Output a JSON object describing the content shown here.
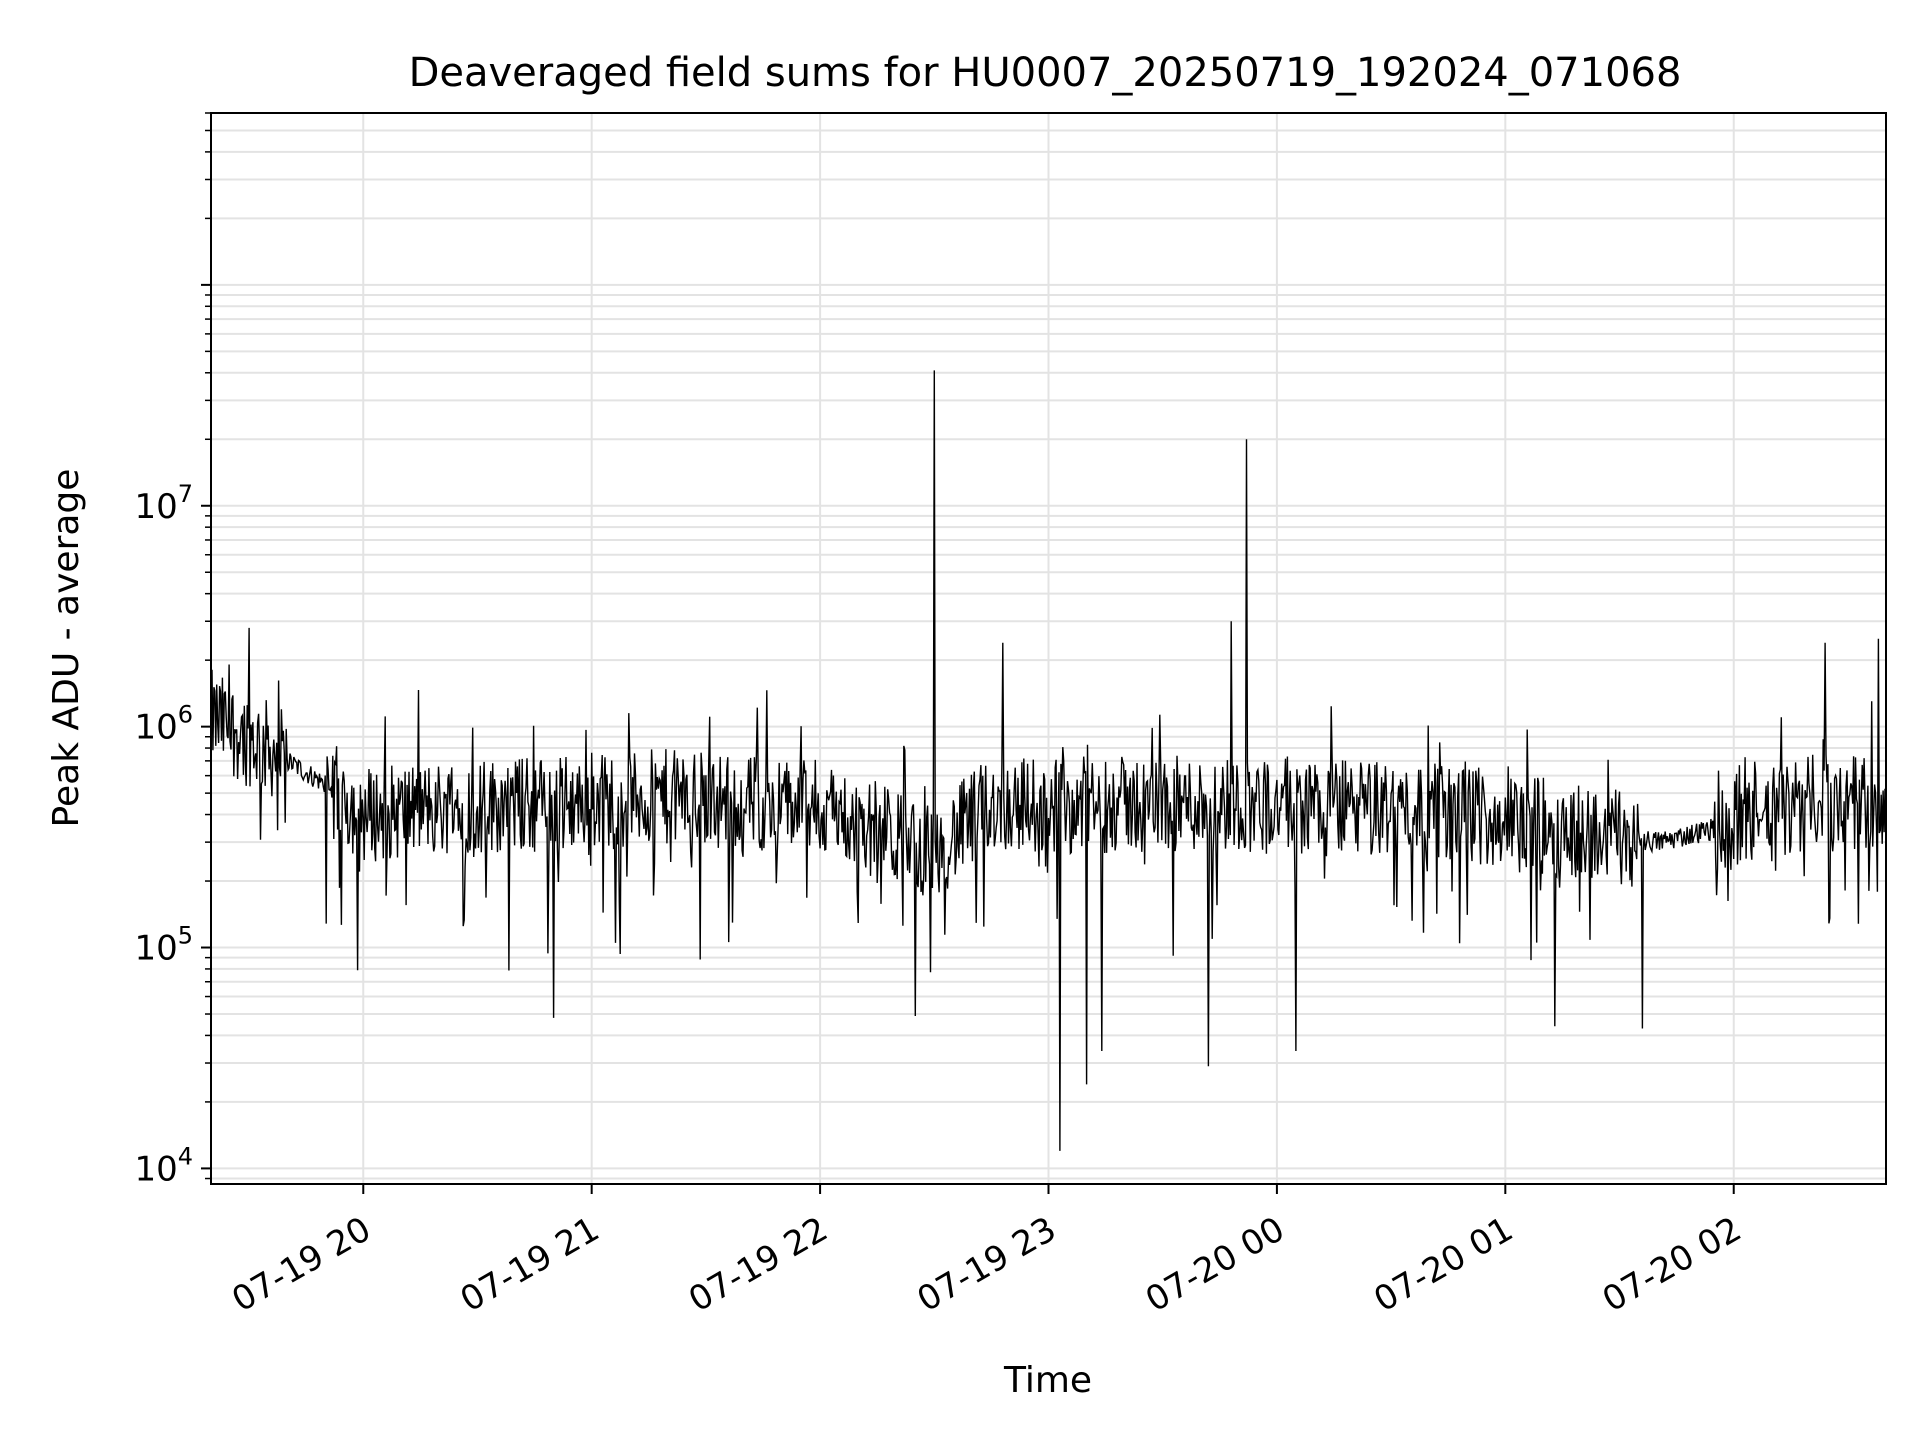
{
  "chart_data": {
    "type": "line",
    "title": "Deaveraged field sums for HU0007_20250719_192024_071068",
    "xlabel": "Time",
    "ylabel": "Peak ADU - average",
    "yscale": "log",
    "xlim": [
      "2025-07-19 19:20",
      "2025-07-20 02:40"
    ],
    "ylim": [
      8500,
      600000000
    ],
    "grid": true,
    "x_ticks": [
      "07-19 20",
      "07-19 21",
      "07-19 22",
      "07-19 23",
      "07-20 00",
      "07-20 01",
      "07-20 02"
    ],
    "y_ticks": [
      {
        "base": "10",
        "exp": "4"
      },
      {
        "base": "10",
        "exp": "5"
      },
      {
        "base": "10",
        "exp": "6"
      },
      {
        "base": "10",
        "exp": "7"
      }
    ],
    "series": [
      {
        "line_color": "#000000",
        "sample_interval_minutes": 0.25,
        "baseline_minutes": [
          0,
          15,
          20,
          30,
          40,
          60,
          90,
          120,
          160,
          190,
          205,
          225,
          270,
          320,
          380,
          390,
          420
        ],
        "baseline_values": [
          1100000,
          800000,
          700000,
          550000,
          400000,
          430000,
          450000,
          480000,
          430000,
          270000,
          450000,
          440000,
          450000,
          420000,
          300000,
          330000,
          450000
        ],
        "peaks": [
          {
            "time": "2025-07-19 22:30",
            "value": 41000000
          },
          {
            "time": "2025-07-19 23:52",
            "value": 20000000
          },
          {
            "time": "2025-07-19 23:48",
            "value": 3000000
          },
          {
            "time": "2025-07-19 19:30",
            "value": 2800000
          },
          {
            "time": "2025-07-19 22:48",
            "value": 2400000
          },
          {
            "time": "2025-07-20 02:38",
            "value": 2500000
          },
          {
            "time": "2025-07-20 02:24",
            "value": 2400000
          }
        ],
        "dips": [
          {
            "time": "2025-07-19 23:03",
            "value": 12000
          },
          {
            "time": "2025-07-19 23:10",
            "value": 24000
          },
          {
            "time": "2025-07-19 23:42",
            "value": 29000
          },
          {
            "time": "2025-07-20 00:05",
            "value": 34000
          },
          {
            "time": "2025-07-19 23:14",
            "value": 34000
          },
          {
            "time": "2025-07-20 01:36",
            "value": 43000
          },
          {
            "time": "2025-07-20 01:13",
            "value": 44000
          },
          {
            "time": "2025-07-19 20:50",
            "value": 48000
          },
          {
            "time": "2025-07-19 22:25",
            "value": 49000
          }
        ]
      }
    ]
  }
}
